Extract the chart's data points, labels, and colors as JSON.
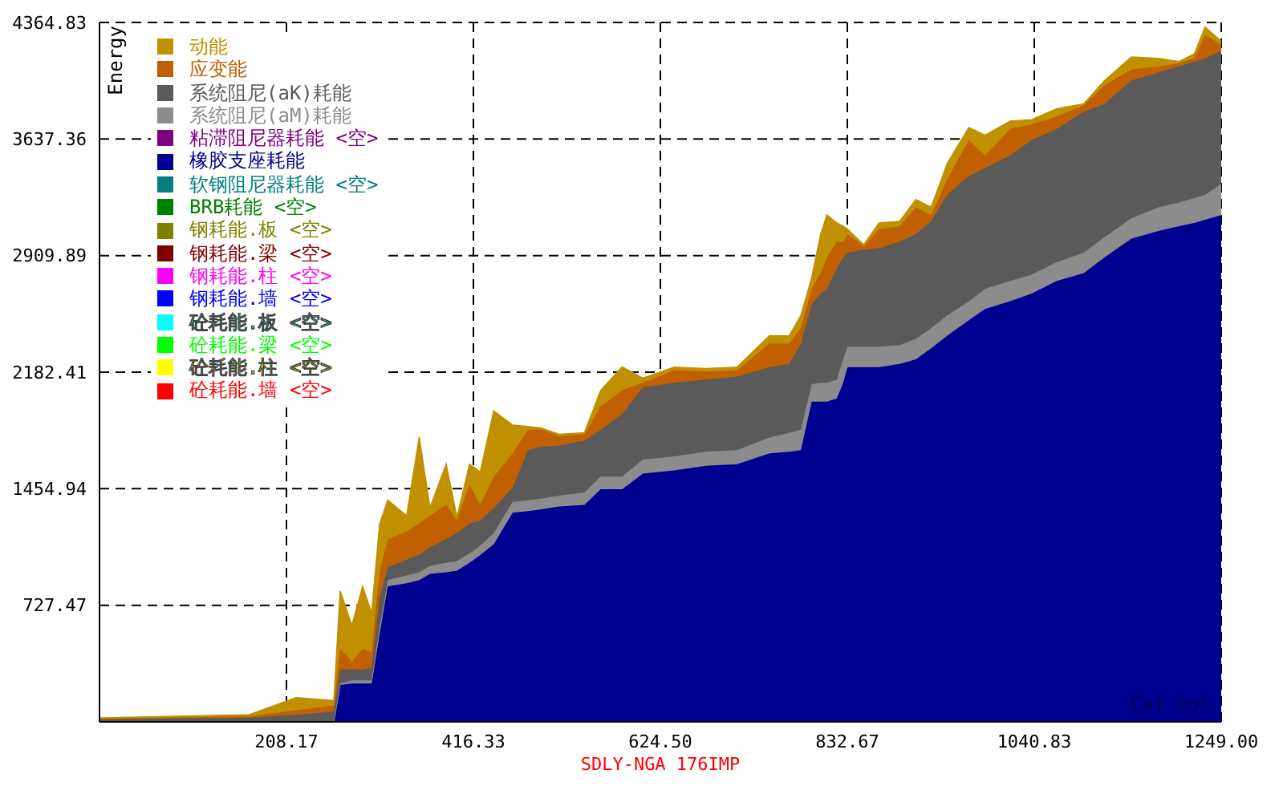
{
  "chart_data": {
    "type": "area",
    "stacked": true,
    "ylabel": "Energy",
    "xlabel": "SDLY-NGA_176IMP",
    "annotations": [
      "Cal Dot"
    ],
    "x": [
      0,
      167,
      219,
      261,
      268,
      281,
      293,
      303,
      312,
      321,
      342,
      356,
      368,
      386,
      398,
      412,
      424,
      439,
      460,
      477,
      491,
      512,
      540,
      558,
      582,
      605,
      640,
      675,
      710,
      746,
      768,
      781,
      793,
      803,
      810,
      821,
      828,
      833,
      851,
      868,
      891,
      909,
      926,
      944,
      968,
      986,
      1014,
      1038,
      1066,
      1096,
      1119,
      1149,
      1179,
      1202,
      1219,
      1231,
      1249
    ],
    "xlim": [
      0,
      1249
    ],
    "xticks": [
      208.17,
      416.33,
      {
        "value": 624.5,
        "label": "624.50"
      },
      832.67,
      1040.83,
      {
        "value": 1249,
        "label": "1249.00"
      }
    ],
    "ylim": [
      0,
      4364.83
    ],
    "yticks": [
      727.47,
      1454.94,
      2182.41,
      2909.89,
      3637.36,
      4364.83
    ],
    "grid": true,
    "legend": "top left",
    "series": [
      {
        "name": "砼耗能.墙 <空>",
        "color": "#ff0000",
        "values": [
          null,
          null,
          null,
          null,
          null,
          null,
          null,
          null,
          null,
          null,
          null,
          null,
          null,
          null,
          null,
          null,
          null,
          null,
          null,
          null,
          null,
          null,
          null,
          null,
          null,
          null,
          null,
          null,
          null,
          null,
          null,
          null,
          null,
          null,
          null,
          null,
          null,
          null,
          null,
          null,
          null,
          null,
          null,
          null,
          null,
          null,
          null,
          null,
          null,
          null,
          null,
          null,
          null,
          null,
          null,
          null,
          null
        ]
      },
      {
        "name": "砼耗能.柱 <空>",
        "color": "#ffff00",
        "values": [
          null,
          null,
          null,
          null,
          null,
          null,
          null,
          null,
          null,
          null,
          null,
          null,
          null,
          null,
          null,
          null,
          null,
          null,
          null,
          null,
          null,
          null,
          null,
          null,
          null,
          null,
          null,
          null,
          null,
          null,
          null,
          null,
          null,
          null,
          null,
          null,
          null,
          null,
          null,
          null,
          null,
          null,
          null,
          null,
          null,
          null,
          null,
          null,
          null,
          null,
          null,
          null,
          null,
          null,
          null,
          null,
          null
        ]
      },
      {
        "name": "砼耗能.梁 <空>",
        "color": "#00ff00",
        "values": [
          null,
          null,
          null,
          null,
          null,
          null,
          null,
          null,
          null,
          null,
          null,
          null,
          null,
          null,
          null,
          null,
          null,
          null,
          null,
          null,
          null,
          null,
          null,
          null,
          null,
          null,
          null,
          null,
          null,
          null,
          null,
          null,
          null,
          null,
          null,
          null,
          null,
          null,
          null,
          null,
          null,
          null,
          null,
          null,
          null,
          null,
          null,
          null,
          null,
          null,
          null,
          null,
          null,
          null,
          null,
          null,
          null
        ]
      },
      {
        "name": "砼耗能.板 <空>",
        "color": "#00ffff",
        "values": [
          null,
          null,
          null,
          null,
          null,
          null,
          null,
          null,
          null,
          null,
          null,
          null,
          null,
          null,
          null,
          null,
          null,
          null,
          null,
          null,
          null,
          null,
          null,
          null,
          null,
          null,
          null,
          null,
          null,
          null,
          null,
          null,
          null,
          null,
          null,
          null,
          null,
          null,
          null,
          null,
          null,
          null,
          null,
          null,
          null,
          null,
          null,
          null,
          null,
          null,
          null,
          null,
          null,
          null,
          null,
          null,
          null
        ]
      },
      {
        "name": "钢耗能.墙 <空>",
        "color": "#0000ff",
        "values": [
          null,
          null,
          null,
          null,
          null,
          null,
          null,
          null,
          null,
          null,
          null,
          null,
          null,
          null,
          null,
          null,
          null,
          null,
          null,
          null,
          null,
          null,
          null,
          null,
          null,
          null,
          null,
          null,
          null,
          null,
          null,
          null,
          null,
          null,
          null,
          null,
          null,
          null,
          null,
          null,
          null,
          null,
          null,
          null,
          null,
          null,
          null,
          null,
          null,
          null,
          null,
          null,
          null,
          null,
          null,
          null,
          null
        ]
      },
      {
        "name": "钢耗能.柱 <空>",
        "color": "#ff00ff",
        "values": [
          null,
          null,
          null,
          null,
          null,
          null,
          null,
          null,
          null,
          null,
          null,
          null,
          null,
          null,
          null,
          null,
          null,
          null,
          null,
          null,
          null,
          null,
          null,
          null,
          null,
          null,
          null,
          null,
          null,
          null,
          null,
          null,
          null,
          null,
          null,
          null,
          null,
          null,
          null,
          null,
          null,
          null,
          null,
          null,
          null,
          null,
          null,
          null,
          null,
          null,
          null,
          null,
          null,
          null,
          null,
          null,
          null
        ]
      },
      {
        "name": "钢耗能.梁 <空>",
        "color": "#800000",
        "values": [
          null,
          null,
          null,
          null,
          null,
          null,
          null,
          null,
          null,
          null,
          null,
          null,
          null,
          null,
          null,
          null,
          null,
          null,
          null,
          null,
          null,
          null,
          null,
          null,
          null,
          null,
          null,
          null,
          null,
          null,
          null,
          null,
          null,
          null,
          null,
          null,
          null,
          null,
          null,
          null,
          null,
          null,
          null,
          null,
          null,
          null,
          null,
          null,
          null,
          null,
          null,
          null,
          null,
          null,
          null,
          null,
          null
        ]
      },
      {
        "name": "钢耗能.板 <空>",
        "color": "#808000",
        "values": [
          null,
          null,
          null,
          null,
          null,
          null,
          null,
          null,
          null,
          null,
          null,
          null,
          null,
          null,
          null,
          null,
          null,
          null,
          null,
          null,
          null,
          null,
          null,
          null,
          null,
          null,
          null,
          null,
          null,
          null,
          null,
          null,
          null,
          null,
          null,
          null,
          null,
          null,
          null,
          null,
          null,
          null,
          null,
          null,
          null,
          null,
          null,
          null,
          null,
          null,
          null,
          null,
          null,
          null,
          null,
          null,
          null
        ]
      },
      {
        "name": "BRB耗能 <空>",
        "color": "#008000",
        "values": [
          null,
          null,
          null,
          null,
          null,
          null,
          null,
          null,
          null,
          null,
          null,
          null,
          null,
          null,
          null,
          null,
          null,
          null,
          null,
          null,
          null,
          null,
          null,
          null,
          null,
          null,
          null,
          null,
          null,
          null,
          null,
          null,
          null,
          null,
          null,
          null,
          null,
          null,
          null,
          null,
          null,
          null,
          null,
          null,
          null,
          null,
          null,
          null,
          null,
          null,
          null,
          null,
          null,
          null,
          null,
          null,
          null
        ]
      },
      {
        "name": "软钢阻尼器耗能 <空>",
        "color": "#008080",
        "values": [
          null,
          null,
          null,
          null,
          null,
          null,
          null,
          null,
          null,
          null,
          null,
          null,
          null,
          null,
          null,
          null,
          null,
          null,
          null,
          null,
          null,
          null,
          null,
          null,
          null,
          null,
          null,
          null,
          null,
          null,
          null,
          null,
          null,
          null,
          null,
          null,
          null,
          null,
          null,
          null,
          null,
          null,
          null,
          null,
          null,
          null,
          null,
          null,
          null,
          null,
          null,
          null,
          null,
          null,
          null,
          null,
          null
        ]
      },
      {
        "name": "橡胶支座耗能",
        "color": "#000090",
        "values": [
          0,
          0,
          0,
          0,
          230,
          239,
          239,
          239,
          552,
          846,
          865,
          885,
          924,
          934,
          943,
          992,
          1041,
          1109,
          1305,
          1315,
          1325,
          1344,
          1354,
          1452,
          1452,
          1549,
          1569,
          1598,
          1608,
          1676,
          1686,
          1696,
          1999,
          1999,
          1999,
          2019,
          2116,
          2214,
          2214,
          2214,
          2234,
          2263,
          2331,
          2410,
          2507,
          2576,
          2625,
          2673,
          2752,
          2801,
          2898,
          3016,
          3064,
          3094,
          3113,
          3133,
          3162
        ]
      },
      {
        "name": "粘滞阻尼器耗能 <空>",
        "color": "#800080",
        "values": [
          null,
          null,
          null,
          null,
          null,
          null,
          null,
          null,
          null,
          null,
          null,
          null,
          null,
          null,
          null,
          null,
          null,
          null,
          null,
          null,
          null,
          null,
          null,
          null,
          null,
          null,
          null,
          null,
          null,
          null,
          null,
          null,
          null,
          null,
          null,
          null,
          null,
          null,
          null,
          null,
          null,
          null,
          null,
          null,
          null,
          null,
          null,
          null,
          null,
          null,
          null,
          null,
          null,
          null,
          null,
          null,
          null
        ]
      },
      {
        "name": "系统阻尼(aM)耗能",
        "color": "#8c8c8c",
        "values": [
          0,
          5,
          5,
          5,
          10,
          20,
          20,
          20,
          39,
          39,
          49,
          49,
          49,
          59,
          59,
          59,
          59,
          68,
          68,
          68,
          68,
          68,
          78,
          78,
          78,
          88,
          88,
          88,
          88,
          98,
          117,
          127,
          108,
          117,
          117,
          117,
          147,
          127,
          127,
          127,
          117,
          127,
          127,
          127,
          117,
          127,
          127,
          117,
          117,
          127,
          127,
          127,
          147,
          147,
          156,
          156,
          196
        ]
      },
      {
        "name": "系统阻尼(aK)耗能",
        "color": "#5a5a5a",
        "values": [
          15,
          20,
          39,
          59,
          88,
          68,
          68,
          78,
          186,
          78,
          98,
          108,
          117,
          147,
          176,
          186,
          156,
          156,
          88,
          313,
          323,
          313,
          323,
          293,
          391,
          450,
          459,
          450,
          459,
          440,
          430,
          538,
          499,
          557,
          587,
          694,
          635,
          587,
          606,
          616,
          645,
          655,
          665,
          753,
          782,
          753,
          782,
          841,
          831,
          880,
          831,
          860,
          841,
          850,
          850,
          850,
          831
        ]
      },
      {
        "name": "应变能",
        "color": "#c06000",
        "values": [
          5,
          10,
          29,
          39,
          127,
          49,
          127,
          98,
          166,
          176,
          176,
          196,
          196,
          215,
          78,
          244,
          98,
          196,
          215,
          127,
          108,
          59,
          39,
          147,
          147,
          29,
          78,
          49,
          39,
          147,
          127,
          98,
          98,
          127,
          196,
          166,
          98,
          117,
          20,
          117,
          98,
          166,
          39,
          98,
          225,
          78,
          166,
          98,
          78,
          39,
          117,
          68,
          39,
          20,
          20,
          147,
          39
        ]
      },
      {
        "name": "动能",
        "color": "#c09000",
        "values": [
          5,
          10,
          78,
          29,
          362,
          225,
          391,
          244,
          293,
          244,
          98,
          538,
          49,
          254,
          20,
          127,
          205,
          411,
          176,
          20,
          10,
          10,
          10,
          98,
          147,
          29,
          20,
          20,
          20,
          49,
          49,
          78,
          68,
          244,
          264,
          117,
          98,
          29,
          10,
          39,
          29,
          49,
          49,
          98,
          78,
          127,
          49,
          29,
          49,
          10,
          29,
          78,
          49,
          10,
          29,
          49,
          20
        ]
      }
    ]
  }
}
